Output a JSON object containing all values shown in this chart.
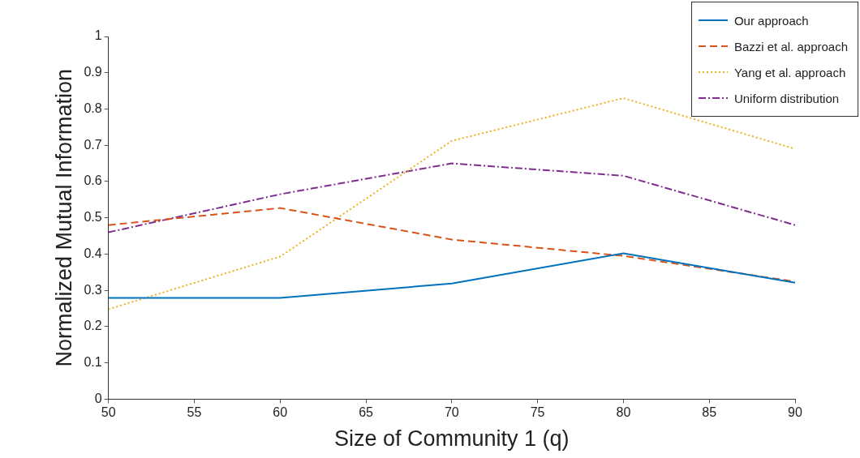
{
  "chart_data": {
    "type": "line",
    "xlabel": "Size of Community 1 (q)",
    "ylabel": "Normalized Mutual Information",
    "x": [
      50,
      60,
      70,
      80,
      90
    ],
    "series": [
      {
        "name": "Our approach",
        "color": "#0072bd",
        "line_style": "solid",
        "values": [
          0.279,
          0.279,
          0.319,
          0.402,
          0.321
        ]
      },
      {
        "name": "Bazzi et al. approach",
        "color": "#d95319",
        "line_style": "dashed",
        "values": [
          0.48,
          0.527,
          0.44,
          0.395,
          0.324
        ]
      },
      {
        "name": "Yang et al. approach",
        "color": "#edb120",
        "line_style": "dotted",
        "values": [
          0.248,
          0.393,
          0.712,
          0.83,
          0.69
        ]
      },
      {
        "name": "Uniform distribution",
        "color": "#7e2f8e",
        "line_style": "dashdot",
        "values": [
          0.46,
          0.565,
          0.65,
          0.616,
          0.48
        ]
      }
    ],
    "xlim": [
      50,
      90
    ],
    "xticks": [
      50,
      55,
      60,
      65,
      70,
      75,
      80,
      85,
      90
    ],
    "ylim": [
      0,
      1
    ],
    "yticks": [
      0,
      0.1,
      0.2,
      0.3,
      0.4,
      0.5,
      0.6,
      0.7,
      0.8,
      0.9,
      1
    ],
    "grid": false,
    "legend": "top right",
    "marker": "none"
  }
}
